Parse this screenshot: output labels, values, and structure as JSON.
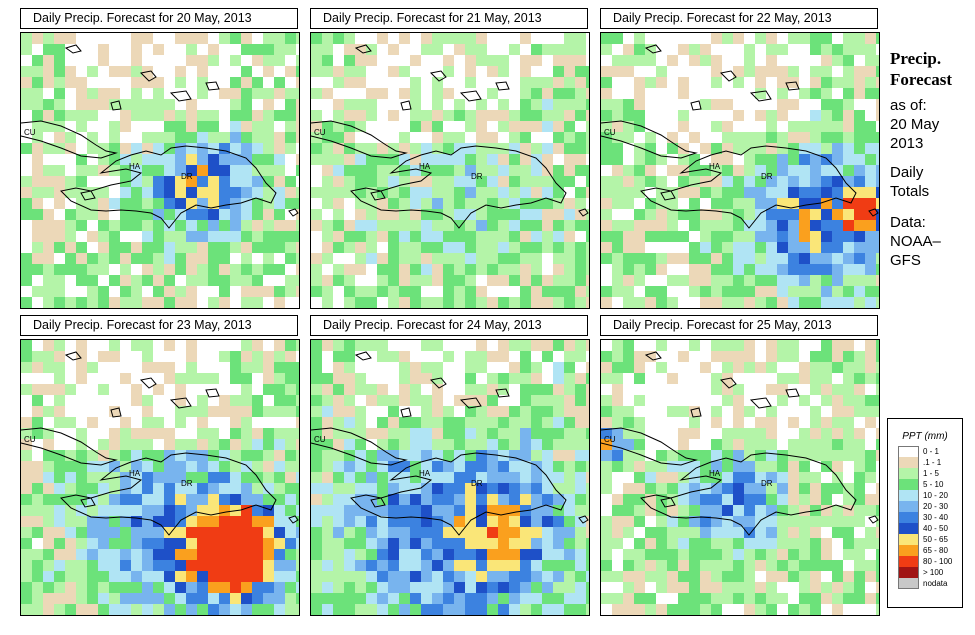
{
  "panels": [
    {
      "title": "Daily Precip. Forecast for  20 May, 2013",
      "day": 0
    },
    {
      "title": "Daily Precip. Forecast for  21 May, 2013",
      "day": 1
    },
    {
      "title": "Daily Precip. Forecast for  22 May, 2013",
      "day": 2
    },
    {
      "title": "Daily Precip. Forecast for  23 May, 2013",
      "day": 3
    },
    {
      "title": "Daily Precip. Forecast for  24 May, 2013",
      "day": 4
    },
    {
      "title": "Daily Precip. Forecast for  25 May, 2013",
      "day": 5
    }
  ],
  "map_labels": {
    "cuba": "CU",
    "haiti": "HA",
    "dominican_republic": "DR"
  },
  "side": {
    "heading_line1": "Precip.",
    "heading_line2": "Forecast",
    "asof_label": "as of:",
    "date_line1": "20 May",
    "date_line2": "2013",
    "totals_line1": "Daily",
    "totals_line2": "Totals",
    "source_line1": "Data:",
    "source_line2": "NOAA–",
    "source_line3": "GFS"
  },
  "legend": {
    "title": "PPT (mm)",
    "items": [
      {
        "label": "0 - 1",
        "color": "#ffffff"
      },
      {
        "label": ".1 - 1",
        "color": "#ecd8b8"
      },
      {
        "label": "1 - 5",
        "color": "#b4f4a8"
      },
      {
        "label": "5 - 10",
        "color": "#6ce27a"
      },
      {
        "label": "10 - 20",
        "color": "#b0e4f4"
      },
      {
        "label": "20 - 30",
        "color": "#78b4ee"
      },
      {
        "label": "30 - 40",
        "color": "#3c82e0"
      },
      {
        "label": "40 - 50",
        "color": "#1e50c8"
      },
      {
        "label": "50 - 65",
        "color": "#fae678"
      },
      {
        "label": "65 - 80",
        "color": "#faa01e"
      },
      {
        "label": "80 - 100",
        "color": "#f03c14"
      },
      {
        "label": "> 100",
        "color": "#a01414"
      },
      {
        "label": "nodata",
        "color": "#c8c8c8"
      }
    ]
  }
}
